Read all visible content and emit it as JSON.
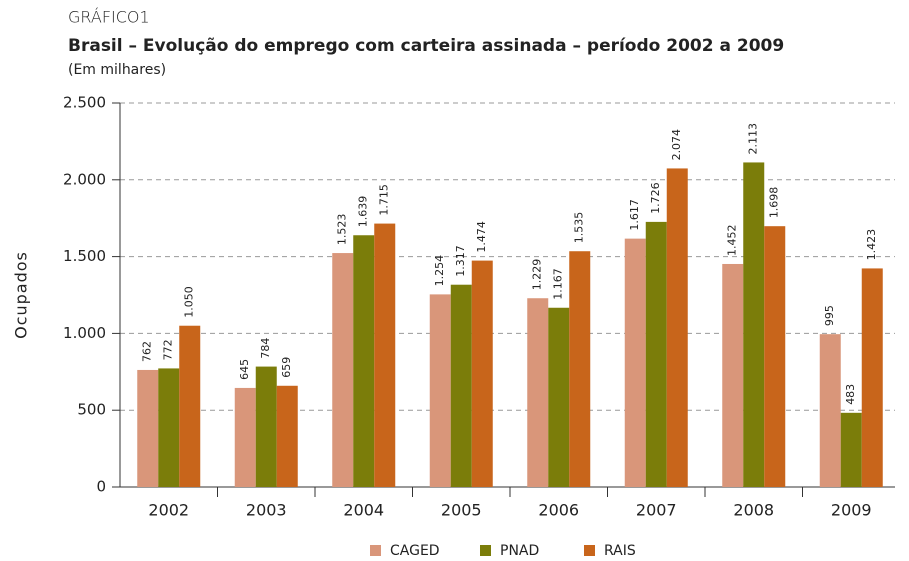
{
  "chart_data": {
    "type": "bar",
    "kicker": "GRÁFICO1",
    "title": "Brasil – Evolução do emprego com carteira assinada – período 2002 a 2009",
    "subtitle": "(Em milhares)",
    "y_label": "Ocupados",
    "categories": [
      "2002",
      "2003",
      "2004",
      "2005",
      "2006",
      "2007",
      "2008",
      "2009"
    ],
    "series": [
      {
        "name": "CAGED",
        "color": "#d9967a",
        "values": [
          762,
          645,
          1523,
          1254,
          1229,
          1617,
          1452,
          995
        ],
        "value_labels": [
          "762",
          "645",
          "1.523",
          "1.254",
          "1.229",
          "1.617",
          "1.452",
          "995"
        ]
      },
      {
        "name": "PNAD",
        "color": "#7b7d0a",
        "values": [
          772,
          784,
          1639,
          1317,
          1167,
          1726,
          2113,
          483
        ],
        "value_labels": [
          "772",
          "784",
          "1.639",
          "1.317",
          "1.167",
          "1.726",
          "2.113",
          "483"
        ]
      },
      {
        "name": "RAIS",
        "color": "#c8651b",
        "values": [
          1050,
          659,
          1715,
          1474,
          1535,
          2074,
          1698,
          1423
        ],
        "value_labels": [
          "1.050",
          "659",
          "1.715",
          "1.474",
          "1.535",
          "2.074",
          "1.698",
          "1.423"
        ]
      }
    ],
    "ylim": [
      0,
      2500
    ],
    "yticks": [
      0,
      500,
      {
        "value": 1000,
        "label": "1.000"
      },
      {
        "value": 1500,
        "label": "1.500"
      },
      {
        "value": 2000,
        "label": "2.000"
      },
      {
        "value": 2500,
        "label": "2.500"
      }
    ],
    "grid": true,
    "legend": "bottom"
  }
}
